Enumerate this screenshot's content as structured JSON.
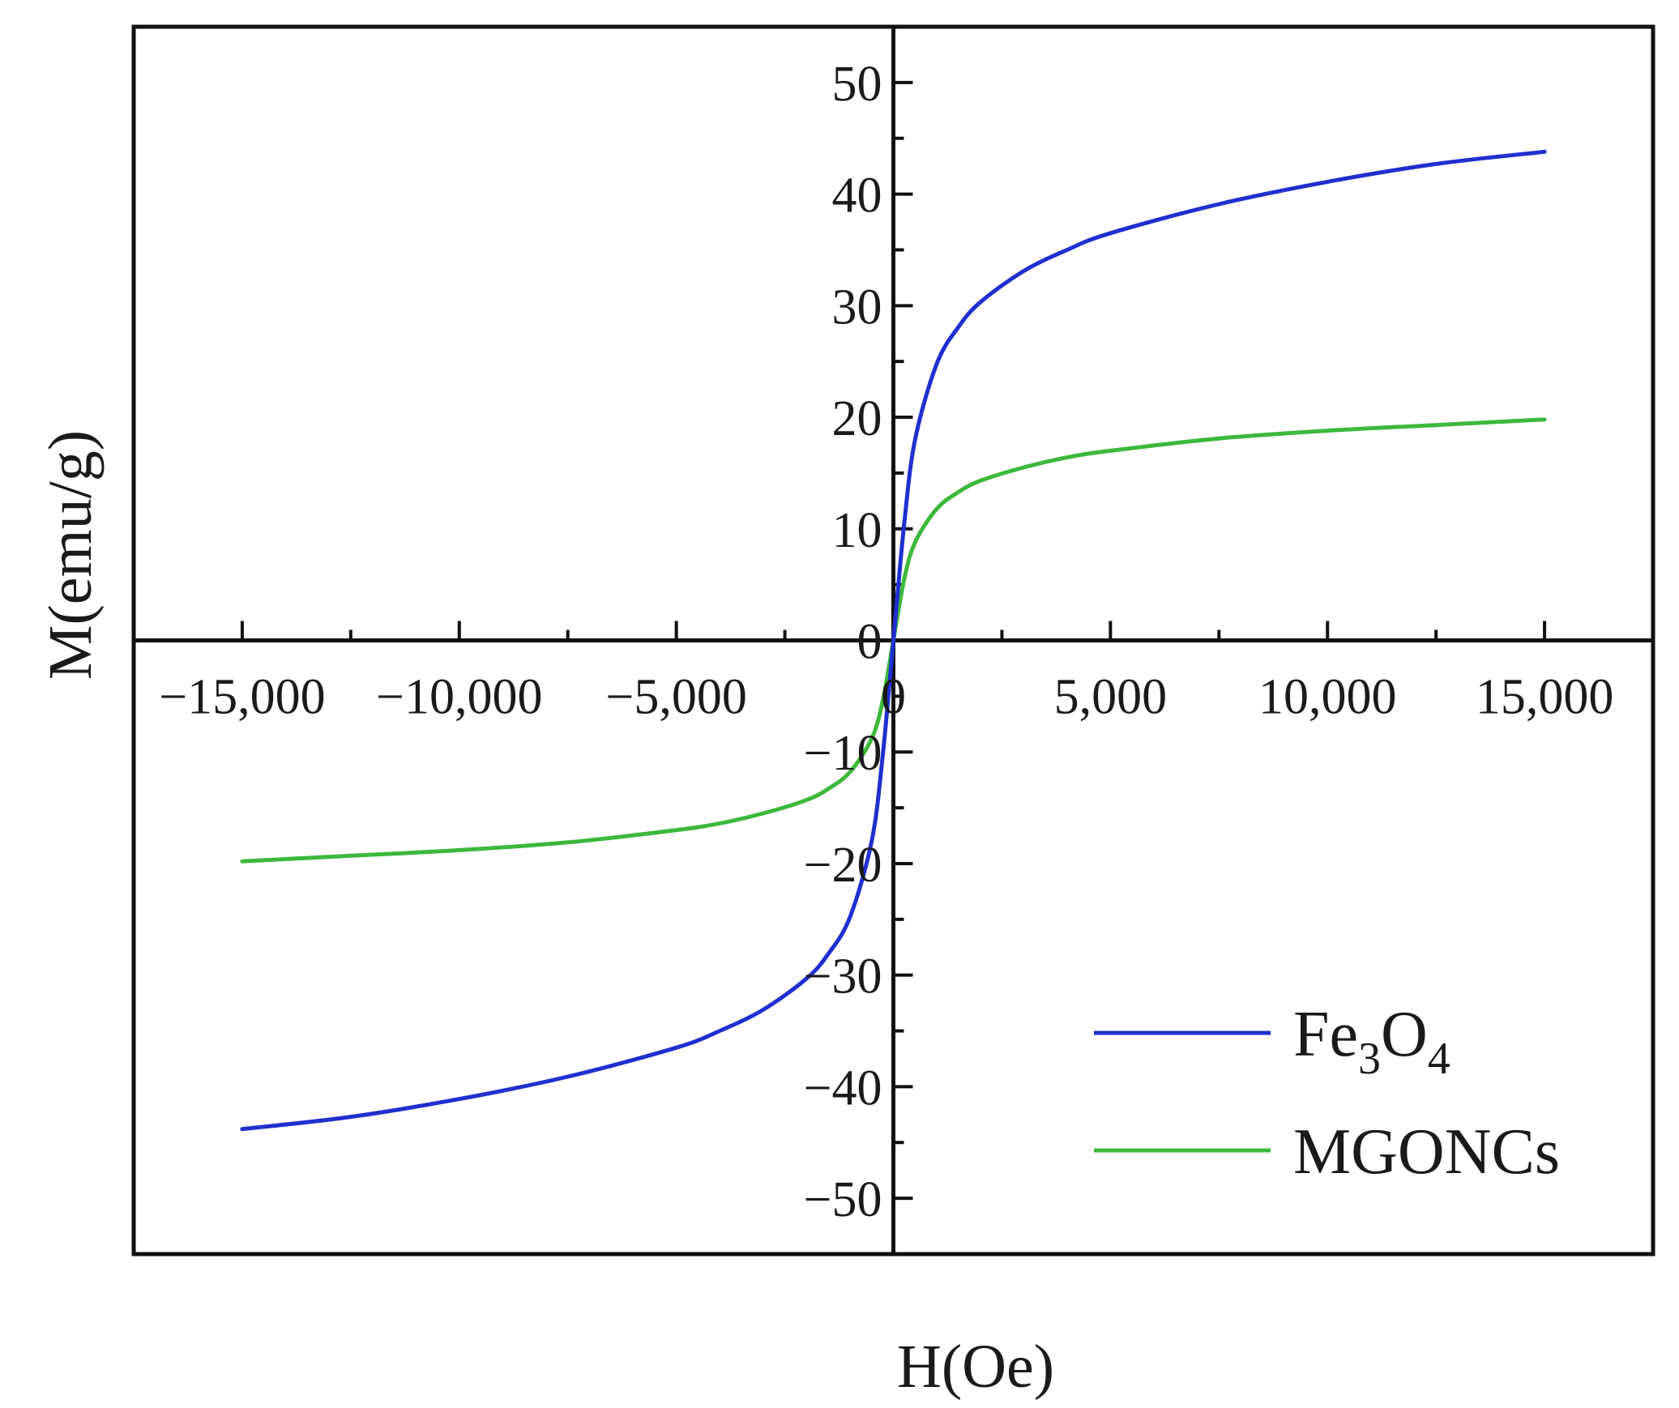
{
  "chart_data": {
    "type": "line",
    "title": "",
    "xlabel": "H(Oe)",
    "ylabel": "M(emu/g)",
    "xlim": [
      -17500,
      17500
    ],
    "ylim": [
      -55,
      55
    ],
    "x_ticks": [
      -15000,
      -10000,
      -5000,
      0,
      5000,
      10000,
      15000
    ],
    "x_tick_labels": [
      "−15,000",
      "−10,000",
      "−5,000",
      "0",
      "5,000",
      "10,000",
      "15,000"
    ],
    "y_ticks": [
      -50,
      -40,
      -30,
      -20,
      -10,
      0,
      10,
      20,
      30,
      40,
      50
    ],
    "y_tick_labels": [
      "−50",
      "−40",
      "−30",
      "−20",
      "−10",
      "0",
      "10",
      "20",
      "30",
      "40",
      "50"
    ],
    "grid": false,
    "legend_position": "bottom-right",
    "series": [
      {
        "name": "Fe3O4",
        "label_main": "Fe",
        "label_sub1": "3",
        "label_mid": "O",
        "label_sub2": "4",
        "color": "#1f2fd0",
        "x": [
          -15000,
          -12500,
          -10000,
          -7500,
          -5000,
          -4000,
          -3000,
          -2000,
          -1500,
          -1000,
          -500,
          -250,
          0,
          250,
          500,
          1000,
          1500,
          2000,
          3000,
          4000,
          5000,
          7500,
          10000,
          12500,
          15000
        ],
        "y": [
          -43.8,
          -42.7,
          -41.1,
          -39.1,
          -36.5,
          -35.0,
          -33.1,
          -30.3,
          -28.1,
          -24.8,
          -18.0,
          -10.5,
          0,
          10.5,
          18.0,
          24.8,
          28.1,
          30.3,
          33.1,
          35.0,
          36.5,
          39.1,
          41.1,
          42.7,
          43.8
        ]
      },
      {
        "name": "MGONCs",
        "color": "#3db83d",
        "x": [
          -15000,
          -12500,
          -10000,
          -7500,
          -5000,
          -4000,
          -3000,
          -2000,
          -1500,
          -1000,
          -500,
          -250,
          0,
          250,
          500,
          1000,
          1500,
          2000,
          3000,
          4000,
          5000,
          7500,
          10000,
          12500,
          15000
        ],
        "y": [
          -19.8,
          -19.3,
          -18.8,
          -18.1,
          -17.0,
          -16.4,
          -15.5,
          -14.3,
          -13.3,
          -11.8,
          -8.8,
          -5.5,
          0,
          5.5,
          8.8,
          11.8,
          13.3,
          14.3,
          15.5,
          16.4,
          17.0,
          18.1,
          18.8,
          19.3,
          19.8
        ]
      }
    ]
  }
}
